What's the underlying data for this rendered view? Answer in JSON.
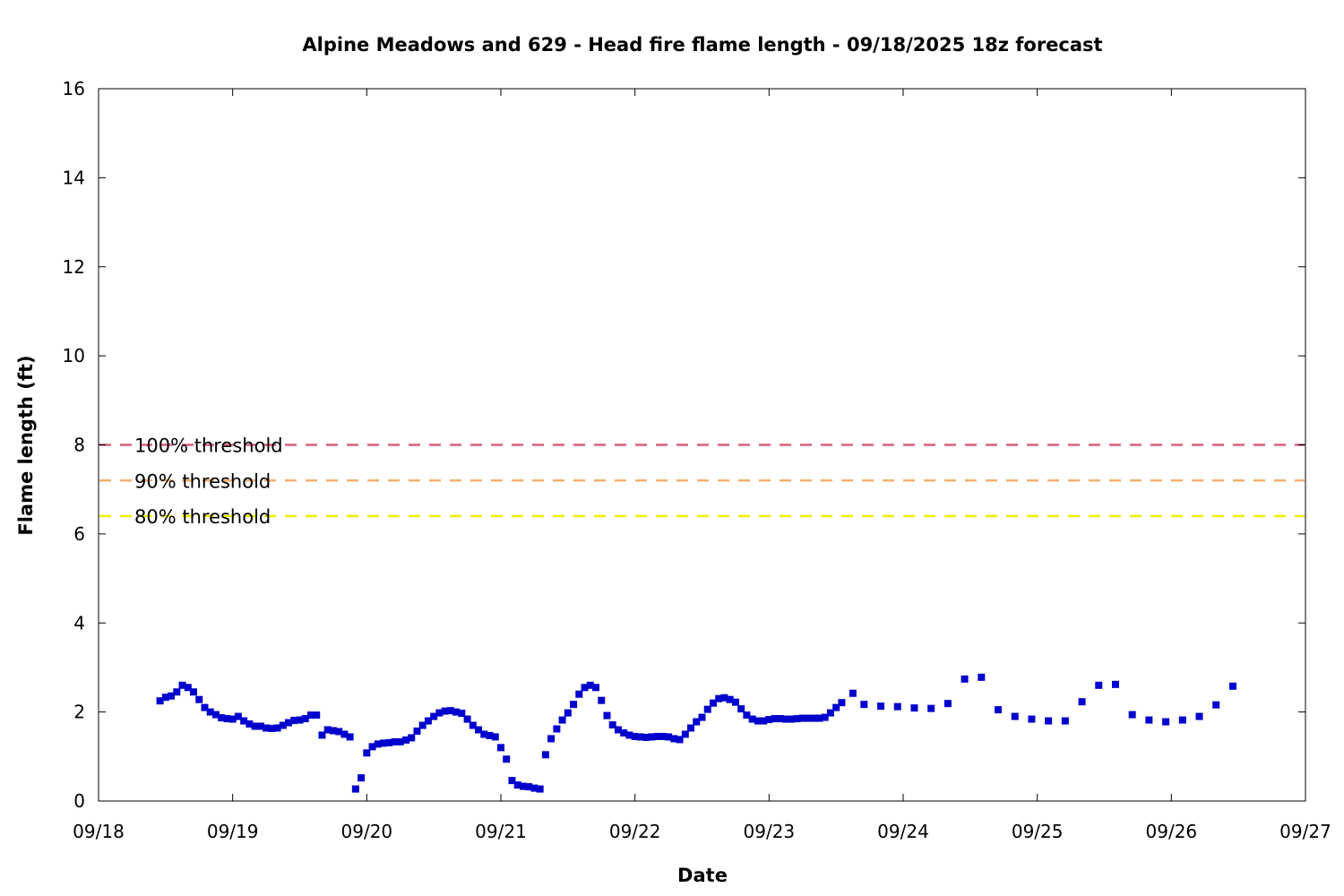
{
  "chart_data": {
    "type": "scatter",
    "title": "Alpine Meadows and 629 - Head fire flame length - 09/18/2025 18z forecast",
    "xlabel": "Date",
    "ylabel": "Flame length (ft)",
    "xlim": [
      "09/18",
      "09/27"
    ],
    "ylim": [
      0,
      16
    ],
    "xticks": [
      "09/18",
      "09/19",
      "09/20",
      "09/21",
      "09/22",
      "09/23",
      "09/24",
      "09/25",
      "09/26",
      "09/27"
    ],
    "yticks": [
      "0",
      "2",
      "4",
      "6",
      "8",
      "10",
      "12",
      "14",
      "16"
    ],
    "grid": false,
    "marker_color": "#0000cc",
    "thresholds": [
      {
        "label": "100% threshold",
        "value": 8.0,
        "color": "#d9607a"
      },
      {
        "label": "90% threshold",
        "value": 7.2,
        "color": "#f0b070"
      },
      {
        "label": "80% threshold",
        "value": 6.4,
        "color": "#eeee00"
      }
    ],
    "series": [
      {
        "points": [
          [
            "09/18 11:00",
            2.25
          ],
          [
            "09/18 12:00",
            2.33
          ],
          [
            "09/18 13:00",
            2.36
          ],
          [
            "09/18 14:00",
            2.45
          ],
          [
            "09/18 15:00",
            2.6
          ],
          [
            "09/18 16:00",
            2.55
          ],
          [
            "09/18 17:00",
            2.45
          ],
          [
            "09/18 18:00",
            2.28
          ],
          [
            "09/18 19:00",
            2.1
          ],
          [
            "09/18 20:00",
            2.0
          ],
          [
            "09/18 21:00",
            1.94
          ],
          [
            "09/18 22:00",
            1.87
          ],
          [
            "09/18 23:00",
            1.85
          ],
          [
            "09/19 00:00",
            1.84
          ],
          [
            "09/19 01:00",
            1.9
          ],
          [
            "09/19 02:00",
            1.8
          ],
          [
            "09/19 03:00",
            1.73
          ],
          [
            "09/19 04:00",
            1.68
          ],
          [
            "09/19 05:00",
            1.68
          ],
          [
            "09/19 06:00",
            1.64
          ],
          [
            "09/19 07:00",
            1.63
          ],
          [
            "09/19 08:00",
            1.64
          ],
          [
            "09/19 09:00",
            1.7
          ],
          [
            "09/19 10:00",
            1.76
          ],
          [
            "09/19 11:00",
            1.81
          ],
          [
            "09/19 12:00",
            1.82
          ],
          [
            "09/19 13:00",
            1.85
          ],
          [
            "09/19 14:00",
            1.93
          ],
          [
            "09/19 15:00",
            1.93
          ],
          [
            "09/19 16:00",
            1.48
          ],
          [
            "09/19 17:00",
            1.6
          ],
          [
            "09/19 18:00",
            1.58
          ],
          [
            "09/19 19:00",
            1.56
          ],
          [
            "09/19 20:00",
            1.5
          ],
          [
            "09/19 21:00",
            1.44
          ],
          [
            "09/19 22:00",
            0.27
          ],
          [
            "09/19 23:00",
            0.52
          ],
          [
            "09/20 00:00",
            1.08
          ],
          [
            "09/20 01:00",
            1.22
          ],
          [
            "09/20 02:00",
            1.28
          ],
          [
            "09/20 03:00",
            1.3
          ],
          [
            "09/20 04:00",
            1.31
          ],
          [
            "09/20 05:00",
            1.33
          ],
          [
            "09/20 06:00",
            1.33
          ],
          [
            "09/20 07:00",
            1.37
          ],
          [
            "09/20 08:00",
            1.42
          ],
          [
            "09/20 09:00",
            1.57
          ],
          [
            "09/20 10:00",
            1.7
          ],
          [
            "09/20 11:00",
            1.8
          ],
          [
            "09/20 12:00",
            1.9
          ],
          [
            "09/20 13:00",
            1.98
          ],
          [
            "09/20 14:00",
            2.02
          ],
          [
            "09/20 15:00",
            2.03
          ],
          [
            "09/20 16:00",
            2.0
          ],
          [
            "09/20 17:00",
            1.97
          ],
          [
            "09/20 18:00",
            1.84
          ],
          [
            "09/20 19:00",
            1.7
          ],
          [
            "09/20 20:00",
            1.6
          ],
          [
            "09/20 21:00",
            1.5
          ],
          [
            "09/20 22:00",
            1.47
          ],
          [
            "09/20 23:00",
            1.44
          ],
          [
            "09/21 00:00",
            1.2
          ],
          [
            "09/21 01:00",
            0.94
          ],
          [
            "09/21 02:00",
            0.46
          ],
          [
            "09/21 03:00",
            0.36
          ],
          [
            "09/21 04:00",
            0.33
          ],
          [
            "09/21 05:00",
            0.32
          ],
          [
            "09/21 06:00",
            0.29
          ],
          [
            "09/21 07:00",
            0.27
          ],
          [
            "09/21 08:00",
            1.04
          ],
          [
            "09/21 09:00",
            1.4
          ],
          [
            "09/21 10:00",
            1.62
          ],
          [
            "09/21 11:00",
            1.82
          ],
          [
            "09/21 12:00",
            1.98
          ],
          [
            "09/21 13:00",
            2.17
          ],
          [
            "09/21 14:00",
            2.4
          ],
          [
            "09/21 15:00",
            2.55
          ],
          [
            "09/21 16:00",
            2.6
          ],
          [
            "09/21 17:00",
            2.55
          ],
          [
            "09/21 18:00",
            2.26
          ],
          [
            "09/21 19:00",
            1.92
          ],
          [
            "09/21 20:00",
            1.71
          ],
          [
            "09/21 21:00",
            1.6
          ],
          [
            "09/21 22:00",
            1.53
          ],
          [
            "09/21 23:00",
            1.48
          ],
          [
            "09/22 00:00",
            1.45
          ],
          [
            "09/22 01:00",
            1.44
          ],
          [
            "09/22 02:00",
            1.43
          ],
          [
            "09/22 03:00",
            1.44
          ],
          [
            "09/22 04:00",
            1.45
          ],
          [
            "09/22 05:00",
            1.45
          ],
          [
            "09/22 06:00",
            1.44
          ],
          [
            "09/22 07:00",
            1.4
          ],
          [
            "09/22 08:00",
            1.38
          ],
          [
            "09/22 09:00",
            1.5
          ],
          [
            "09/22 10:00",
            1.64
          ],
          [
            "09/22 11:00",
            1.78
          ],
          [
            "09/22 12:00",
            1.88
          ],
          [
            "09/22 13:00",
            2.06
          ],
          [
            "09/22 14:00",
            2.2
          ],
          [
            "09/22 15:00",
            2.3
          ],
          [
            "09/22 16:00",
            2.32
          ],
          [
            "09/22 17:00",
            2.28
          ],
          [
            "09/22 18:00",
            2.22
          ],
          [
            "09/22 19:00",
            2.07
          ],
          [
            "09/22 20:00",
            1.93
          ],
          [
            "09/22 21:00",
            1.84
          ],
          [
            "09/22 22:00",
            1.8
          ],
          [
            "09/22 23:00",
            1.8
          ],
          [
            "09/23 00:00",
            1.83
          ],
          [
            "09/23 01:00",
            1.85
          ],
          [
            "09/23 02:00",
            1.85
          ],
          [
            "09/23 03:00",
            1.84
          ],
          [
            "09/23 04:00",
            1.84
          ],
          [
            "09/23 05:00",
            1.85
          ],
          [
            "09/23 06:00",
            1.86
          ],
          [
            "09/23 07:00",
            1.86
          ],
          [
            "09/23 08:00",
            1.86
          ],
          [
            "09/23 09:00",
            1.86
          ],
          [
            "09/23 10:00",
            1.88
          ],
          [
            "09/23 11:00",
            1.98
          ],
          [
            "09/23 12:00",
            2.1
          ],
          [
            "09/23 13:00",
            2.21
          ],
          [
            "09/23 15:00",
            2.42
          ],
          [
            "09/23 17:00",
            2.17
          ],
          [
            "09/23 20:00",
            2.13
          ],
          [
            "09/23 23:00",
            2.12
          ],
          [
            "09/24 02:00",
            2.09
          ],
          [
            "09/24 05:00",
            2.08
          ],
          [
            "09/24 08:00",
            2.19
          ],
          [
            "09/24 11:00",
            2.74
          ],
          [
            "09/24 14:00",
            2.78
          ],
          [
            "09/24 17:00",
            2.05
          ],
          [
            "09/24 20:00",
            1.9
          ],
          [
            "09/24 23:00",
            1.84
          ],
          [
            "09/25 02:00",
            1.8
          ],
          [
            "09/25 05:00",
            1.8
          ],
          [
            "09/25 08:00",
            2.23
          ],
          [
            "09/25 11:00",
            2.6
          ],
          [
            "09/25 14:00",
            2.62
          ],
          [
            "09/25 17:00",
            1.94
          ],
          [
            "09/25 20:00",
            1.82
          ],
          [
            "09/25 23:00",
            1.78
          ],
          [
            "09/26 02:00",
            1.82
          ],
          [
            "09/26 05:00",
            1.9
          ],
          [
            "09/26 08:00",
            2.16
          ],
          [
            "09/26 11:00",
            2.58
          ]
        ]
      }
    ]
  }
}
